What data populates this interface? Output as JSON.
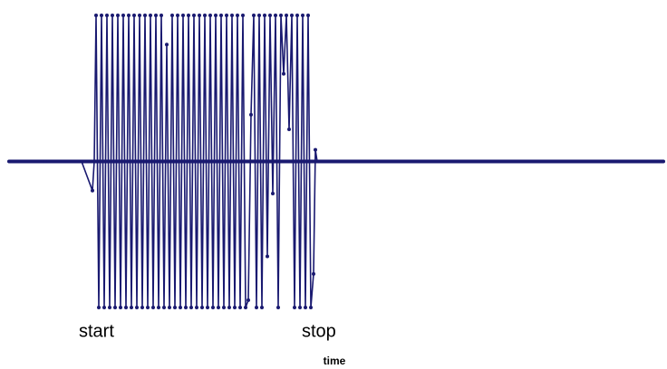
{
  "chart_data": {
    "type": "line",
    "annotations": [
      "start",
      "stop"
    ],
    "xlabel": "time",
    "color": "#191970",
    "xlim": [
      0,
      722
    ],
    "ylim": [
      -1,
      1
    ],
    "series": [
      {
        "color": "#191970",
        "x": [
          0,
          40,
          80,
          92,
          94,
          96,
          99,
          102,
          105,
          108,
          111,
          114,
          117,
          120,
          123,
          126,
          129,
          132,
          135,
          138,
          141,
          144,
          147,
          150,
          153,
          156,
          159,
          162,
          165,
          168,
          171,
          174,
          177,
          180,
          183,
          186,
          189,
          192,
          195,
          198,
          201,
          204,
          207,
          210,
          213,
          216,
          219,
          222,
          225,
          228,
          231,
          234,
          237,
          240,
          243,
          246,
          249,
          252,
          255,
          258,
          261,
          264,
          267,
          270,
          273,
          276,
          279,
          282,
          285,
          288,
          291,
          294,
          297,
          300,
          303,
          306,
          309,
          312,
          315,
          318,
          321,
          324,
          327,
          330,
          333,
          336,
          338,
          340,
          400,
          722
        ],
        "values": [
          0,
          0,
          0,
          -0.2,
          0,
          1,
          -1,
          1,
          -1,
          1,
          -1,
          1,
          -1,
          1,
          -1,
          1,
          -1,
          1,
          -1,
          1,
          -1,
          1,
          -1,
          1,
          -1,
          1,
          -1,
          1,
          -1,
          1,
          -1,
          0.8,
          -1,
          1,
          -1,
          1,
          -1,
          1,
          -1,
          1,
          -1,
          1,
          -1,
          1,
          -1,
          1,
          -1,
          1,
          -1,
          1,
          -1,
          1,
          -1,
          1,
          -1,
          1,
          -1,
          1,
          -1,
          1,
          -1,
          -0.95,
          0.32,
          1,
          -1,
          1,
          -1,
          1,
          -0.65,
          1,
          -0.22,
          1,
          -1,
          1,
          0.6,
          1,
          0.22,
          1,
          -1,
          1,
          -1,
          1,
          -1,
          1,
          -1,
          -0.77,
          0.08,
          0,
          0,
          0
        ]
      }
    ]
  }
}
